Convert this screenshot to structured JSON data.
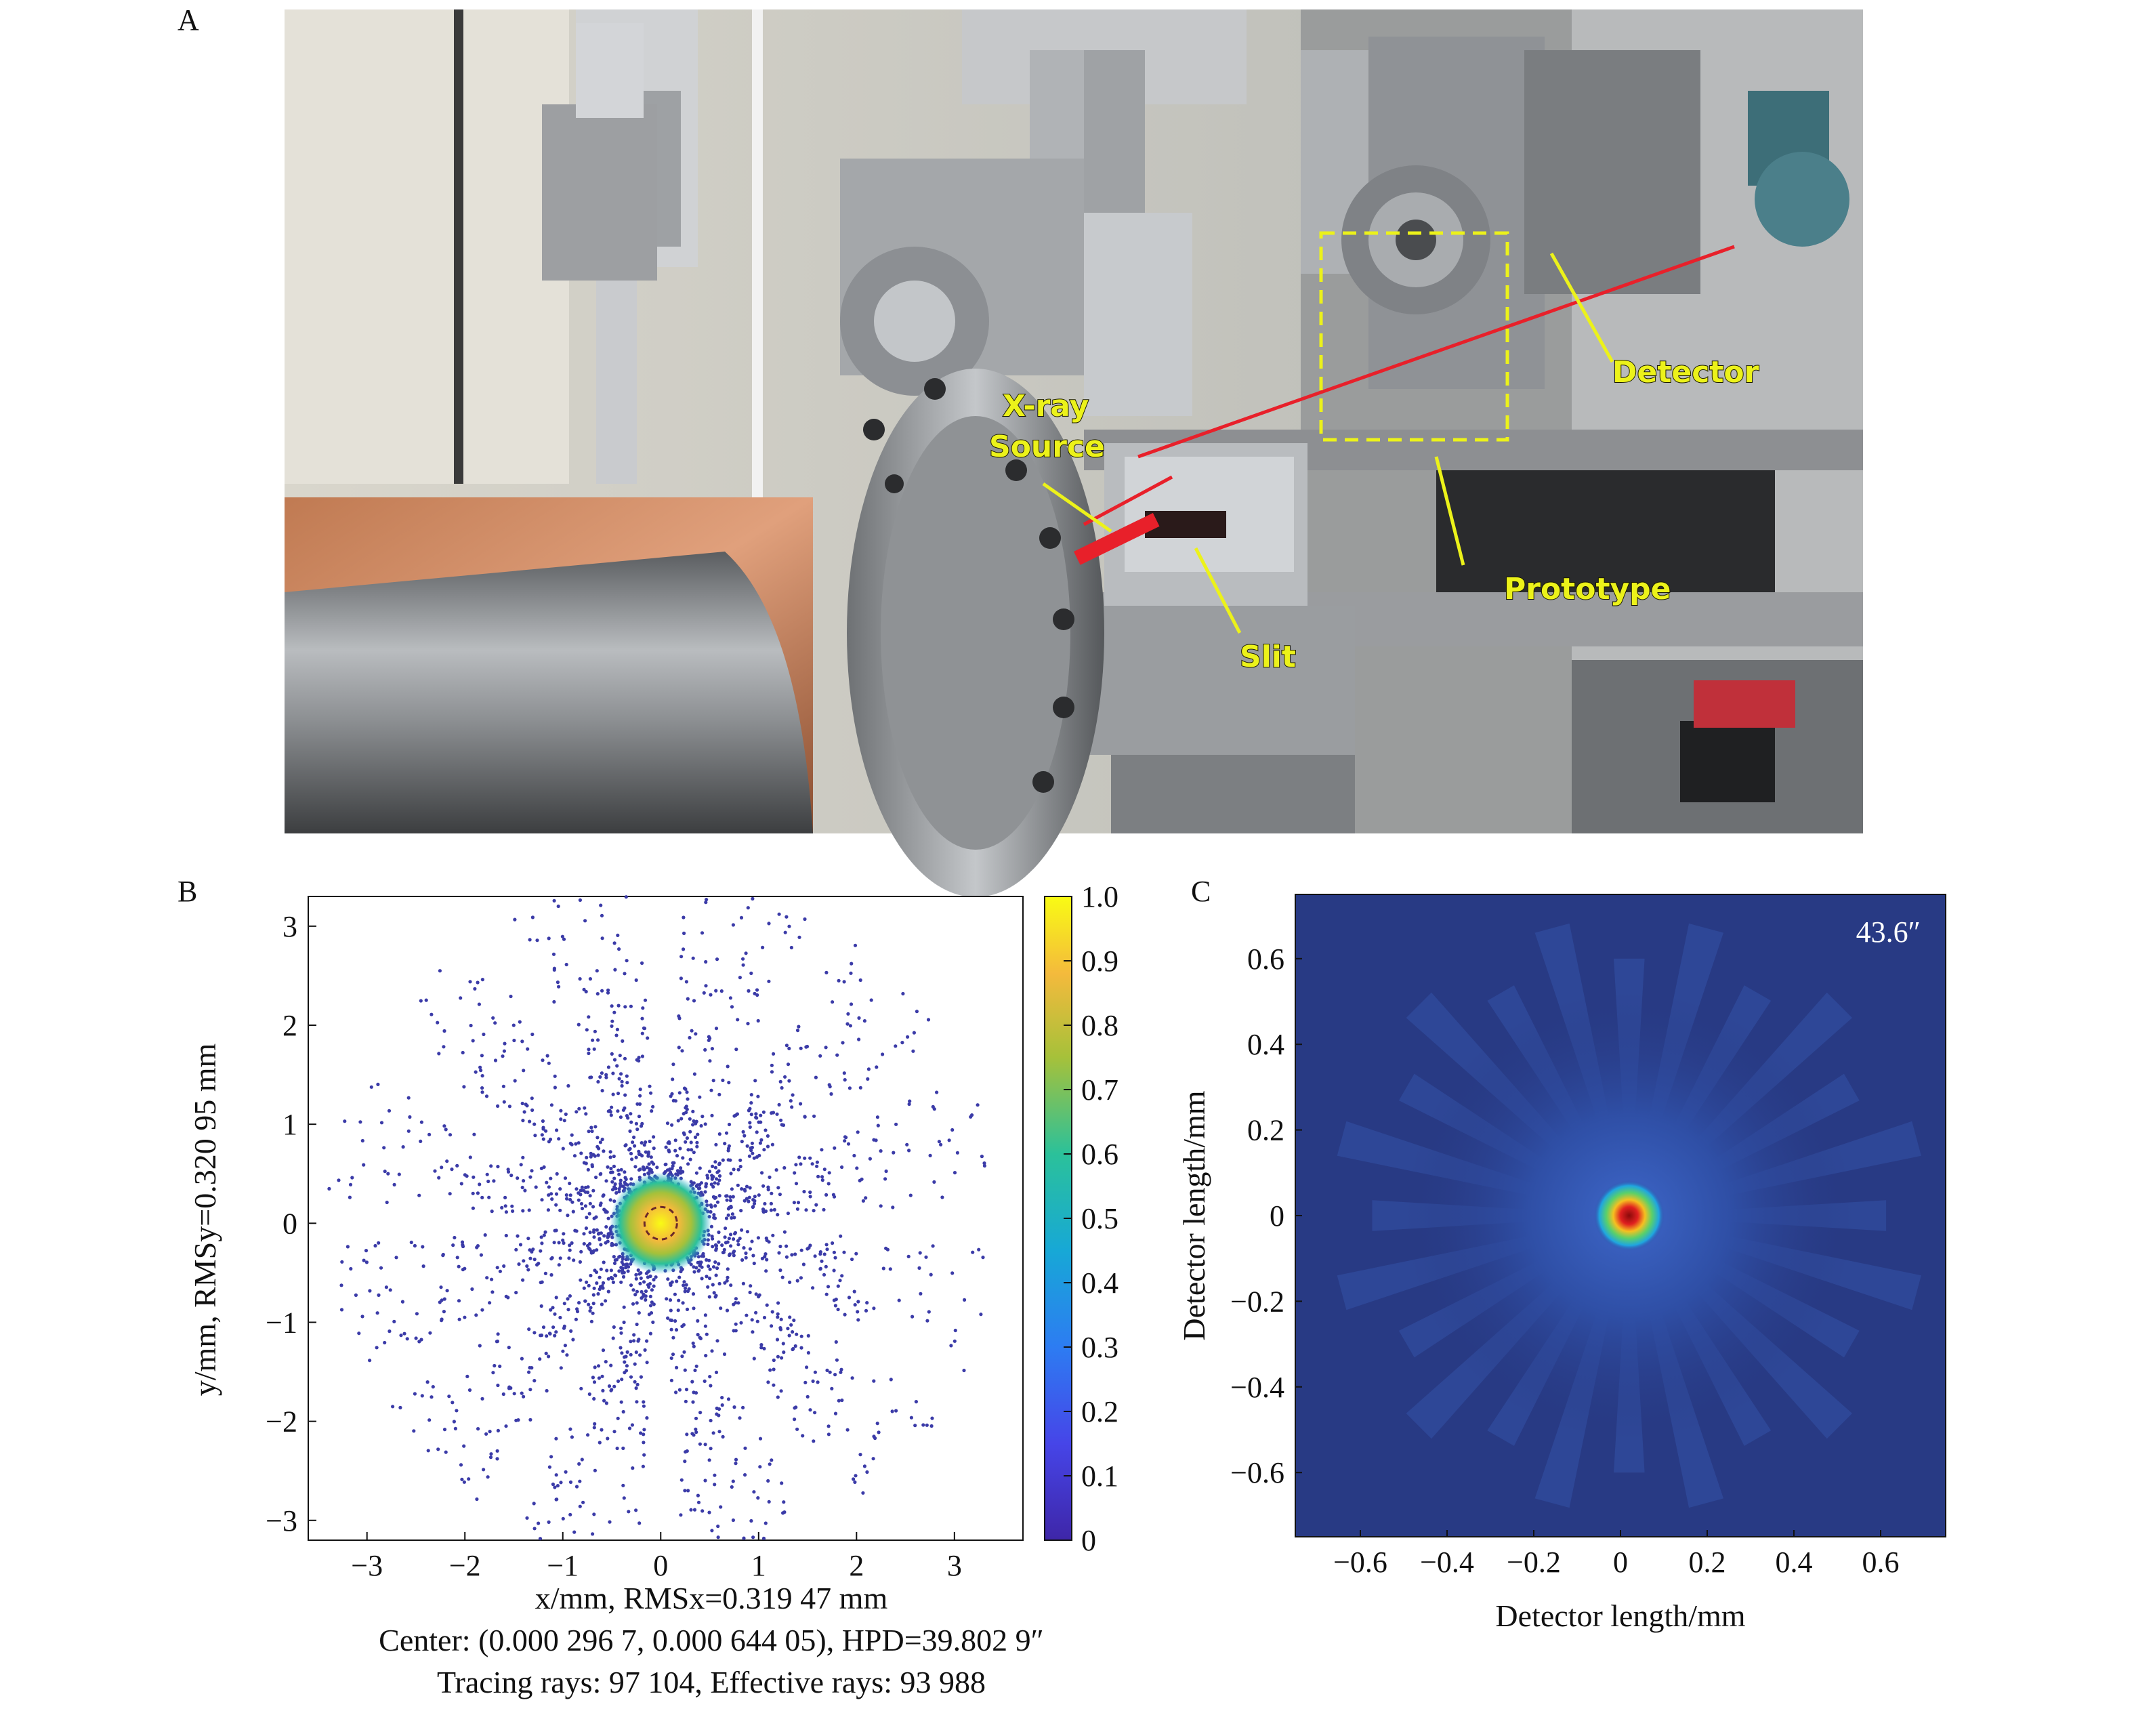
{
  "panels": {
    "a": {
      "letter": "A",
      "labels": {
        "xray_source_line1": "X-ray",
        "xray_source_line2": "Source",
        "slit": "Slit",
        "prototype": "Prototype",
        "detector": "Detector"
      }
    },
    "b": {
      "letter": "B"
    },
    "c": {
      "letter": "C",
      "annotation": "43.6″"
    }
  },
  "caption_b": {
    "line1": "Center: (0.000 296 7, 0.000 644 05), HPD=39.802 9″",
    "line2": "Tracing rays: 97 104, Effective rays: 93 988"
  },
  "colors": {
    "yellow_annot": "#ecf21a",
    "beam_red": "#e8202a",
    "dot": "#3b3ba8",
    "map_bg": "#283a84"
  },
  "chart_data": [
    {
      "type": "scatter",
      "panel": "B",
      "xlabel": "x/mm, RMSx=0.319 47 mm",
      "ylabel": "y/mm, RMSy=0.320 95 mm",
      "xlim": [
        -3.6,
        3.7
      ],
      "ylim": [
        -3.2,
        3.3
      ],
      "xticks": [
        "−3",
        "−2",
        "−1",
        "0",
        "1",
        "2",
        "3"
      ],
      "yticks": [
        "−3",
        "−2",
        "−1",
        "0",
        "1",
        "2",
        "3"
      ],
      "xtick_values": [
        -3,
        -2,
        -1,
        0,
        1,
        2,
        3
      ],
      "ytick_values": [
        -3,
        -2,
        -1,
        0,
        1,
        2,
        3
      ],
      "colorbar": {
        "min": 0,
        "max": 1.0,
        "ticks": [
          "0",
          "0.1",
          "0.2",
          "0.3",
          "0.4",
          "0.5",
          "0.6",
          "0.7",
          "0.8",
          "0.9",
          "1.0"
        ]
      },
      "center": [
        0.0002967,
        0.00064405
      ],
      "rms_x_mm": 0.31947,
      "rms_y_mm": 0.32095,
      "hpd_arcsec": 39.8029,
      "tracing_rays": 97104,
      "effective_rays": 93988,
      "spikes": 12,
      "colormap": "parula"
    },
    {
      "type": "heatmap",
      "panel": "C",
      "xlabel": "Detector length/mm",
      "ylabel": "Detector length/mm",
      "xlim": [
        -0.75,
        0.75
      ],
      "ylim": [
        -0.75,
        0.75
      ],
      "xticks": [
        "−0.6",
        "−0.4",
        "−0.2",
        "0",
        "0.2",
        "0.4",
        "0.6"
      ],
      "yticks": [
        "0.6",
        "0.4",
        "0.2",
        "0",
        "−0.2",
        "−0.4",
        "−0.6"
      ],
      "xtick_values": [
        -0.6,
        -0.4,
        -0.2,
        0,
        0.2,
        0.4,
        0.6
      ],
      "ytick_values": [
        0.6,
        0.4,
        0.2,
        0,
        -0.2,
        -0.4,
        -0.6
      ],
      "peak_position_mm": [
        0.02,
        0.0
      ],
      "hpd_arcsec": 43.6,
      "colormap": "jet"
    }
  ]
}
